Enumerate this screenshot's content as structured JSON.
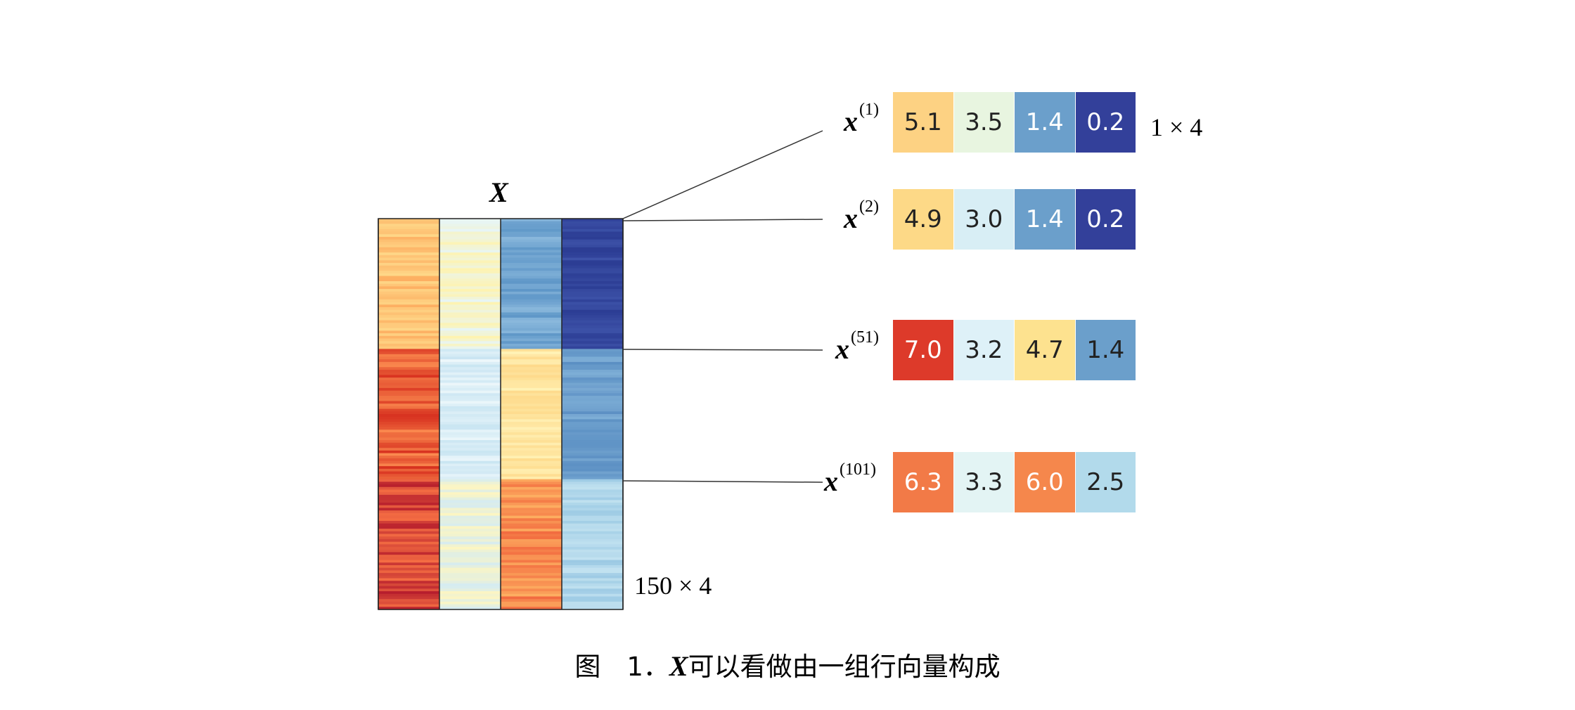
{
  "matrix": {
    "title": "X",
    "dim_label": "150 × 4",
    "column_gradient_colors": [
      "#fdd283",
      "#e6f4fa",
      "#6b9fcb",
      "#33409a"
    ]
  },
  "rows": [
    {
      "label_main": "x",
      "label_sup": "(1)",
      "values": [
        "5.1",
        "3.5",
        "1.4",
        "0.2"
      ],
      "colors": [
        "#fdd283",
        "#e8f5e0",
        "#6b9fcb",
        "#33409a"
      ],
      "text_colors": [
        "#222",
        "#222",
        "#ffffff",
        "#ffffff"
      ]
    },
    {
      "label_main": "x",
      "label_sup": "(2)",
      "values": [
        "4.9",
        "3.0",
        "1.4",
        "0.2"
      ],
      "colors": [
        "#fdd987",
        "#d8eef5",
        "#6b9fcb",
        "#33409a"
      ],
      "text_colors": [
        "#222",
        "#222",
        "#ffffff",
        "#ffffff"
      ]
    },
    {
      "label_main": "x",
      "label_sup": "(51)",
      "values": [
        "7.0",
        "3.2",
        "4.7",
        "1.4"
      ],
      "colors": [
        "#dd3a2a",
        "#def1f8",
        "#fde28f",
        "#6b9fcb"
      ],
      "text_colors": [
        "#ffffff",
        "#222",
        "#222",
        "#222"
      ]
    },
    {
      "label_main": "x",
      "label_sup": "(101)",
      "values": [
        "6.3",
        "3.3",
        "6.0",
        "2.5"
      ],
      "colors": [
        "#f27a47",
        "#e3f4f4",
        "#f5874c",
        "#b2daeb"
      ],
      "text_colors": [
        "#ffffff",
        "#222",
        "#ffffff",
        "#222"
      ]
    }
  ],
  "row_dim_label": "1 × 4",
  "caption": {
    "prefix": "图　1．",
    "var": "X",
    "text": "可以看做由一组行向量构成"
  }
}
